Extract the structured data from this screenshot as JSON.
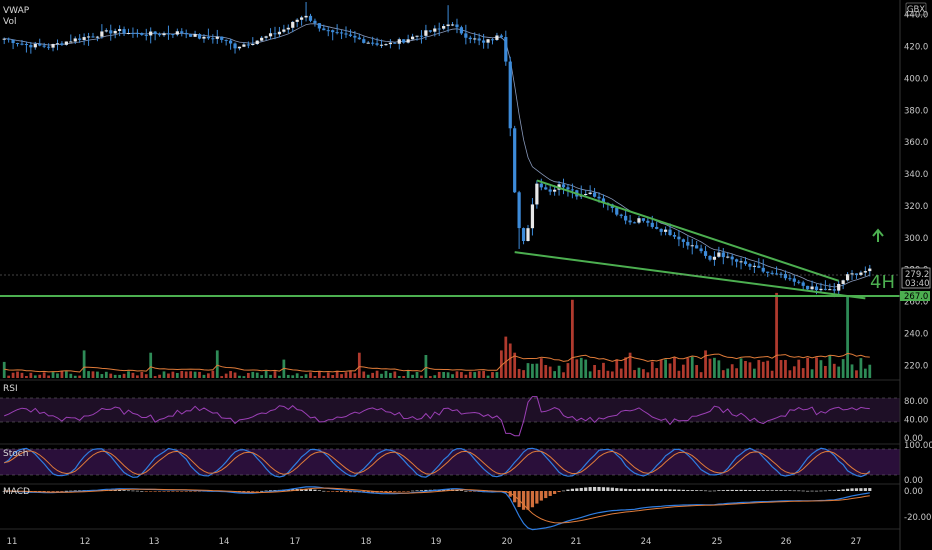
{
  "chart_data": {
    "type": "candlestick",
    "currency": "GBX",
    "timeframe_badge": "4H",
    "indicators": {
      "overlay_labels": [
        "VWAP",
        "Vol"
      ],
      "panes": [
        "RSI",
        "Stoch",
        "MACD"
      ]
    },
    "price_axis": {
      "ticks": [
        "440.0",
        "420.0",
        "400.0",
        "380.0",
        "360.0",
        "340.0",
        "320.0",
        "300.0",
        "280.0",
        "260.0",
        "240.0",
        "220.0"
      ],
      "ylim": [
        212,
        448
      ]
    },
    "x_axis": {
      "ticks": [
        "11",
        "12",
        "13",
        "14",
        "17",
        "18",
        "19",
        "20",
        "21",
        "24",
        "25",
        "26",
        "27"
      ]
    },
    "last_price": {
      "value": "279.2",
      "countdown": "03:40"
    },
    "support_level": {
      "value": "267.0"
    },
    "rsi_axis": {
      "ticks": [
        "80.00",
        "40.00",
        "0.00"
      ],
      "upper_band": 70,
      "lower_band": 30
    },
    "stoch_axis": {
      "ticks": [
        "100.00",
        "0.00"
      ],
      "upper_band": 80,
      "lower_band": 20
    },
    "macd_axis": {
      "ticks": [
        "0.00",
        "-20.00"
      ]
    },
    "price_anchors": [
      [
        0,
        425
      ],
      [
        5,
        421
      ],
      [
        10,
        420
      ],
      [
        15,
        424
      ],
      [
        20,
        427
      ],
      [
        25,
        430
      ],
      [
        30,
        428
      ],
      [
        35,
        428
      ],
      [
        40,
        429
      ],
      [
        45,
        425
      ],
      [
        48,
        426
      ],
      [
        52,
        420
      ],
      [
        56,
        423
      ],
      [
        60,
        427
      ],
      [
        64,
        432
      ],
      [
        66,
        437
      ],
      [
        68,
        440
      ],
      [
        70,
        434
      ],
      [
        74,
        428
      ],
      [
        78,
        426
      ],
      [
        82,
        423
      ],
      [
        86,
        421
      ],
      [
        90,
        424
      ],
      [
        94,
        428
      ],
      [
        98,
        431
      ],
      [
        100,
        435
      ],
      [
        104,
        427
      ],
      [
        108,
        422
      ],
      [
        110,
        425
      ],
      [
        112,
        427
      ],
      [
        113,
        412
      ],
      [
        114,
        370
      ],
      [
        115,
        330
      ],
      [
        116,
        306
      ],
      [
        117,
        297
      ],
      [
        118,
        305
      ],
      [
        119,
        322
      ],
      [
        120,
        334
      ],
      [
        121,
        333
      ],
      [
        123,
        329
      ],
      [
        125,
        334
      ],
      [
        127,
        331
      ],
      [
        129,
        327
      ],
      [
        131,
        329
      ],
      [
        133,
        327
      ],
      [
        135,
        323
      ],
      [
        137,
        319
      ],
      [
        139,
        313
      ],
      [
        141,
        309
      ],
      [
        143,
        311
      ],
      [
        145,
        309
      ],
      [
        147,
        306
      ],
      [
        149,
        304
      ],
      [
        151,
        302
      ],
      [
        153,
        298
      ],
      [
        155,
        295
      ],
      [
        157,
        292
      ],
      [
        159,
        285
      ],
      [
        161,
        291
      ],
      [
        163,
        287
      ],
      [
        165,
        285
      ],
      [
        167,
        283
      ],
      [
        169,
        281
      ],
      [
        171,
        279
      ],
      [
        173,
        277
      ],
      [
        175,
        276
      ],
      [
        177,
        273
      ],
      [
        179,
        271
      ],
      [
        181,
        269
      ],
      [
        183,
        267
      ],
      [
        185,
        268
      ],
      [
        187,
        266
      ],
      [
        188,
        271
      ],
      [
        190,
        276
      ],
      [
        192,
        278
      ],
      [
        194,
        279.2
      ]
    ],
    "volume_spikes": [
      [
        0,
        0.35
      ],
      [
        18,
        0.6
      ],
      [
        33,
        0.55
      ],
      [
        48,
        0.6
      ],
      [
        63,
        0.4
      ],
      [
        80,
        0.55
      ],
      [
        95,
        0.5
      ],
      [
        112,
        0.6
      ],
      [
        113,
        0.9
      ],
      [
        114,
        0.75
      ],
      [
        115,
        0.55
      ],
      [
        128,
        1.7
      ],
      [
        141,
        0.55
      ],
      [
        158,
        0.6
      ],
      [
        174,
        1.85
      ],
      [
        186,
        0.5
      ],
      [
        190,
        1.8
      ]
    ],
    "trendlines": [
      {
        "name": "falling-wedge-upper",
        "from": [
          120,
          336
        ],
        "to": [
          188,
          273
        ]
      },
      {
        "name": "falling-wedge-lower",
        "from": [
          115,
          291
        ],
        "to": [
          194,
          262
        ]
      }
    ]
  }
}
